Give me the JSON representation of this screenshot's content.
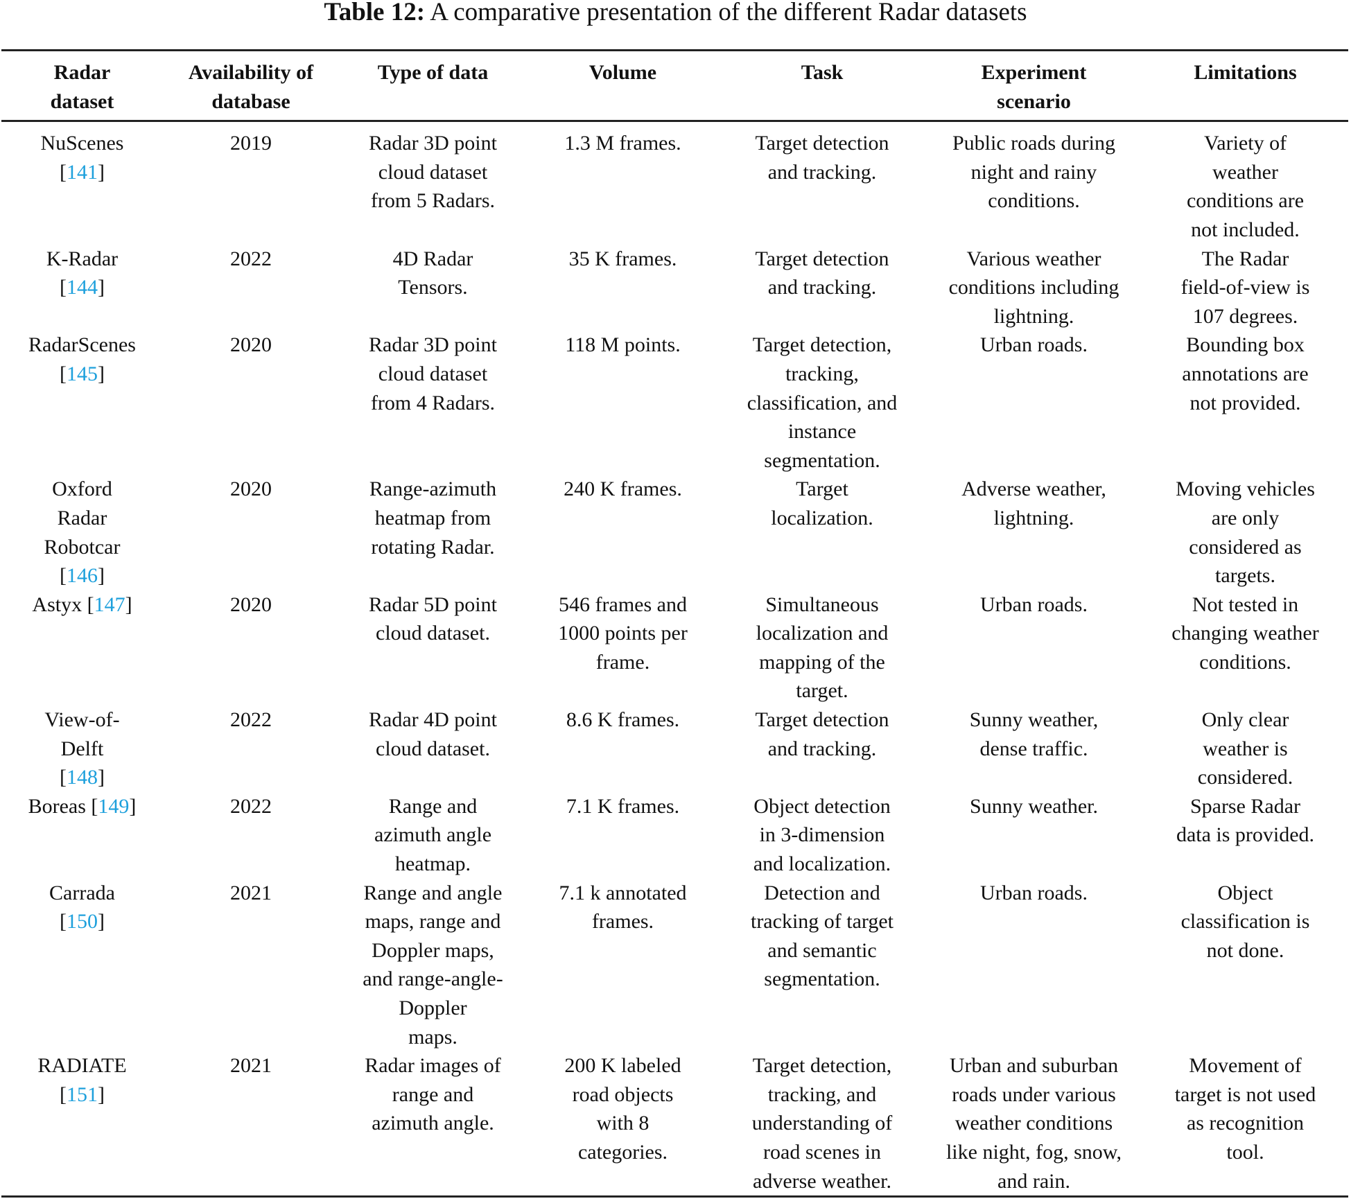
{
  "title": {
    "label": "Table 12:",
    "text": " A comparative presentation of the different Radar datasets"
  },
  "colors": {
    "link": "#1ea0dc"
  },
  "headers": [
    "Radar\ndataset",
    "Availability of\ndatabase",
    "Type of data",
    "Volume",
    "Task",
    "Experiment\nscenario",
    "Limitations"
  ],
  "rows": [
    {
      "name": "NuScenes\n",
      "ref": "141",
      "year": "2019",
      "type": "Radar 3D point\ncloud dataset\nfrom 5 Radars.",
      "volume": "1.3 M frames.",
      "task": "Target detection\nand tracking.",
      "scenario": "Public roads during\nnight and rainy\nconditions.",
      "limitations": "Variety of\nweather\nconditions are\nnot included."
    },
    {
      "name": "K-Radar\n",
      "ref": "144",
      "year": "2022",
      "type": "4D Radar\nTensors.",
      "volume": "35 K frames.",
      "task": "Target detection\nand tracking.",
      "scenario": "Various weather\nconditions including\nlightning.",
      "limitations": "The Radar\nfield-of-view is\n107 degrees."
    },
    {
      "name": "RadarScenes\n",
      "ref": "145",
      "year": "2020",
      "type": "Radar 3D point\ncloud dataset\nfrom 4 Radars.",
      "volume": "118 M points.",
      "task": "Target detection,\ntracking,\nclassification, and\ninstance\nsegmentation.",
      "scenario": "Urban roads.",
      "limitations": "Bounding box\nannotations are\nnot provided."
    },
    {
      "name": "Oxford\nRadar\nRobotcar\n",
      "ref": "146",
      "year": "2020",
      "type": "Range-azimuth\nheatmap from\nrotating Radar.",
      "volume": "240 K frames.",
      "task": "Target\nlocalization.",
      "scenario": "Adverse weather,\nlightning.",
      "limitations": "Moving vehicles\nare only\nconsidered as\ntargets."
    },
    {
      "name": "Astyx ",
      "ref": "147",
      "year": "2020",
      "type": "Radar 5D point\ncloud dataset.",
      "volume": "546 frames and\n1000 points per\nframe.",
      "task": "Simultaneous\nlocalization and\nmapping of the\ntarget.",
      "scenario": "Urban roads.",
      "limitations": "Not tested in\nchanging weather\nconditions."
    },
    {
      "name": "View-of-\nDelft\n",
      "ref": "148",
      "year": "2022",
      "type": "Radar 4D point\ncloud dataset.",
      "volume": "8.6 K frames.",
      "task": "Target detection\nand tracking.",
      "scenario": "Sunny weather,\ndense traffic.",
      "limitations": "Only clear\nweather is\nconsidered."
    },
    {
      "name": "Boreas ",
      "ref": "149",
      "year": "2022",
      "type": "Range and\nazimuth angle\nheatmap.",
      "volume": "7.1 K frames.",
      "task": "Object detection\nin 3-dimension\nand localization.",
      "scenario": "Sunny weather.",
      "limitations": "Sparse Radar\ndata is provided."
    },
    {
      "name": "Carrada\n",
      "ref": "150",
      "year": "2021",
      "type": "Range and angle\nmaps, range and\nDoppler maps,\nand range-angle-\nDoppler\nmaps.",
      "volume": "7.1 k annotated\nframes.",
      "task": "Detection and\ntracking of target\nand semantic\nsegmentation.",
      "scenario": "Urban roads.",
      "limitations": "Object\nclassification is\nnot done."
    },
    {
      "name": "RADIATE\n",
      "ref": "151",
      "year": "2021",
      "type": "Radar images of\nrange and\nazimuth angle.",
      "volume": "200 K labeled\nroad objects\nwith 8\ncategories.",
      "task": "Target detection,\ntracking, and\nunderstanding of\nroad scenes in\nadverse weather.",
      "scenario": "Urban and suburban\nroads under various\nweather conditions\nlike night, fog, snow,\nand rain.",
      "limitations": "Movement of\ntarget is not used\nas recognition\ntool."
    }
  ]
}
